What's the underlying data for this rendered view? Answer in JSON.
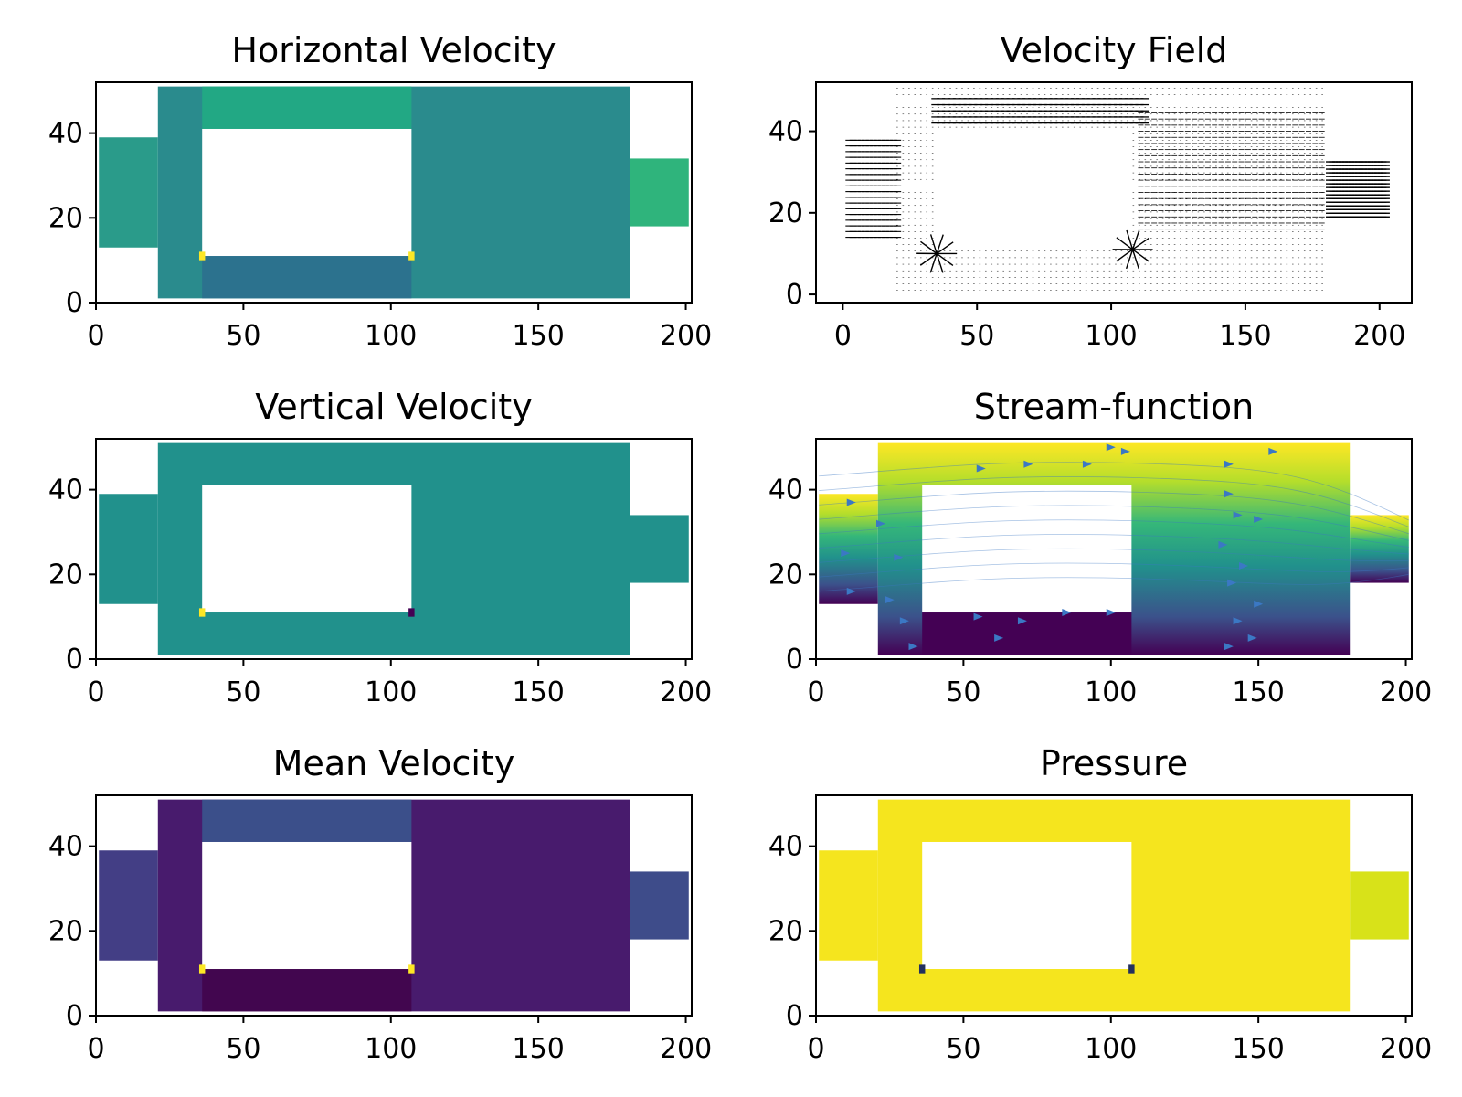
{
  "chart_data": [
    {
      "type": "heatmap",
      "title": "Horizontal Velocity",
      "field": "horizontal",
      "xticks": [
        0,
        50,
        100,
        150,
        200
      ],
      "yticks": [
        0,
        20,
        40
      ],
      "xlim": [
        0,
        202
      ],
      "ylim": [
        0,
        52
      ],
      "colors": {
        "upper": "#22a884",
        "lower": "#2c728e",
        "inlet": "#2a9d89",
        "right": "#2a8b8d",
        "outlet": "#2fb47c",
        "left": "#2a9b8a"
      }
    },
    {
      "type": "quiver",
      "title": "Velocity Field",
      "field": "quiver",
      "xticks": [
        0,
        50,
        100,
        150,
        200
      ],
      "yticks": [
        0,
        20,
        40
      ],
      "xlim": [
        -10,
        212
      ],
      "ylim": [
        -2,
        52
      ],
      "colors": {
        "arrow": "#000000"
      }
    },
    {
      "type": "heatmap",
      "title": "Vertical Velocity",
      "field": "vertical",
      "xticks": [
        0,
        50,
        100,
        150,
        200
      ],
      "yticks": [
        0,
        20,
        40
      ],
      "xlim": [
        0,
        202
      ],
      "ylim": [
        0,
        52
      ],
      "colors": {
        "base": "#21918c"
      }
    },
    {
      "type": "heatmap",
      "title": "Stream-function",
      "field": "stream",
      "xticks": [
        0,
        50,
        100,
        150,
        200
      ],
      "yticks": [
        0,
        20,
        40
      ],
      "xlim": [
        0,
        202
      ],
      "ylim": [
        0,
        52
      ],
      "colors": {
        "top": "#fde725",
        "mid": "#21918c",
        "bottom": "#440154",
        "streamline": "#3b78c4"
      }
    },
    {
      "type": "heatmap",
      "title": "Mean Velocity",
      "field": "mean",
      "xticks": [
        0,
        50,
        100,
        150,
        200
      ],
      "yticks": [
        0,
        20,
        40
      ],
      "xlim": [
        0,
        202
      ],
      "ylim": [
        0,
        52
      ],
      "colors": {
        "upper": "#3b4f8a",
        "lower": "#42064f",
        "main": "#481b6d",
        "inlet": "#433e85",
        "outlet": "#3e4c8a"
      }
    },
    {
      "type": "heatmap",
      "title": "Pressure",
      "field": "pressure",
      "xticks": [
        0,
        50,
        100,
        150,
        200
      ],
      "yticks": [
        0,
        20,
        40
      ],
      "xlim": [
        0,
        202
      ],
      "ylim": [
        0,
        52
      ],
      "colors": {
        "base": "#f5e51e",
        "outlet": "#d8e219"
      }
    }
  ]
}
